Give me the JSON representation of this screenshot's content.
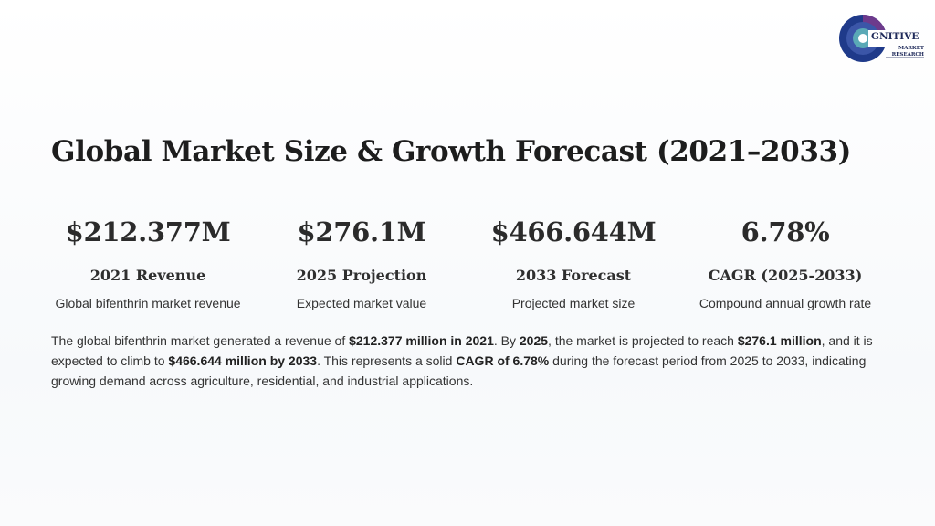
{
  "logo": {
    "word": "GNITIVE",
    "line1": "MARKET",
    "line2": "RESEARCH",
    "colors": {
      "ring_outer": "#1f3a8a",
      "ring_mid": "#3b56a8",
      "ring_inner": "#5aa9b6",
      "accent": "#6d3a8c"
    }
  },
  "title": "Global Market Size & Growth Forecast (2021–2033)",
  "stats": [
    {
      "value": "$212.377M",
      "label": "2021 Revenue",
      "desc": "Global bifenthrin market revenue"
    },
    {
      "value": "$276.1M",
      "label": "2025 Projection",
      "desc": "Expected market value"
    },
    {
      "value": "$466.644M",
      "label": "2033 Forecast",
      "desc": "Projected market size"
    },
    {
      "value": "6.78%",
      "label": "CAGR (2025-2033)",
      "desc": "Compound annual growth rate"
    }
  ],
  "summary": {
    "p1": "The global bifenthrin market generated a revenue of ",
    "b1": "$212.377 million in 2021",
    "p2": ". By ",
    "b2": "2025",
    "p3": ", the market is projected to reach ",
    "b3": "$276.1 million",
    "p4": ", and it is expected to climb to ",
    "b4": "$466.644 million by 2033",
    "p5": ". This represents a solid ",
    "b5": "CAGR of 6.78%",
    "p6": " during the forecast period from 2025 to 2033, indicating growing demand across agriculture, residential, and industrial applications."
  }
}
